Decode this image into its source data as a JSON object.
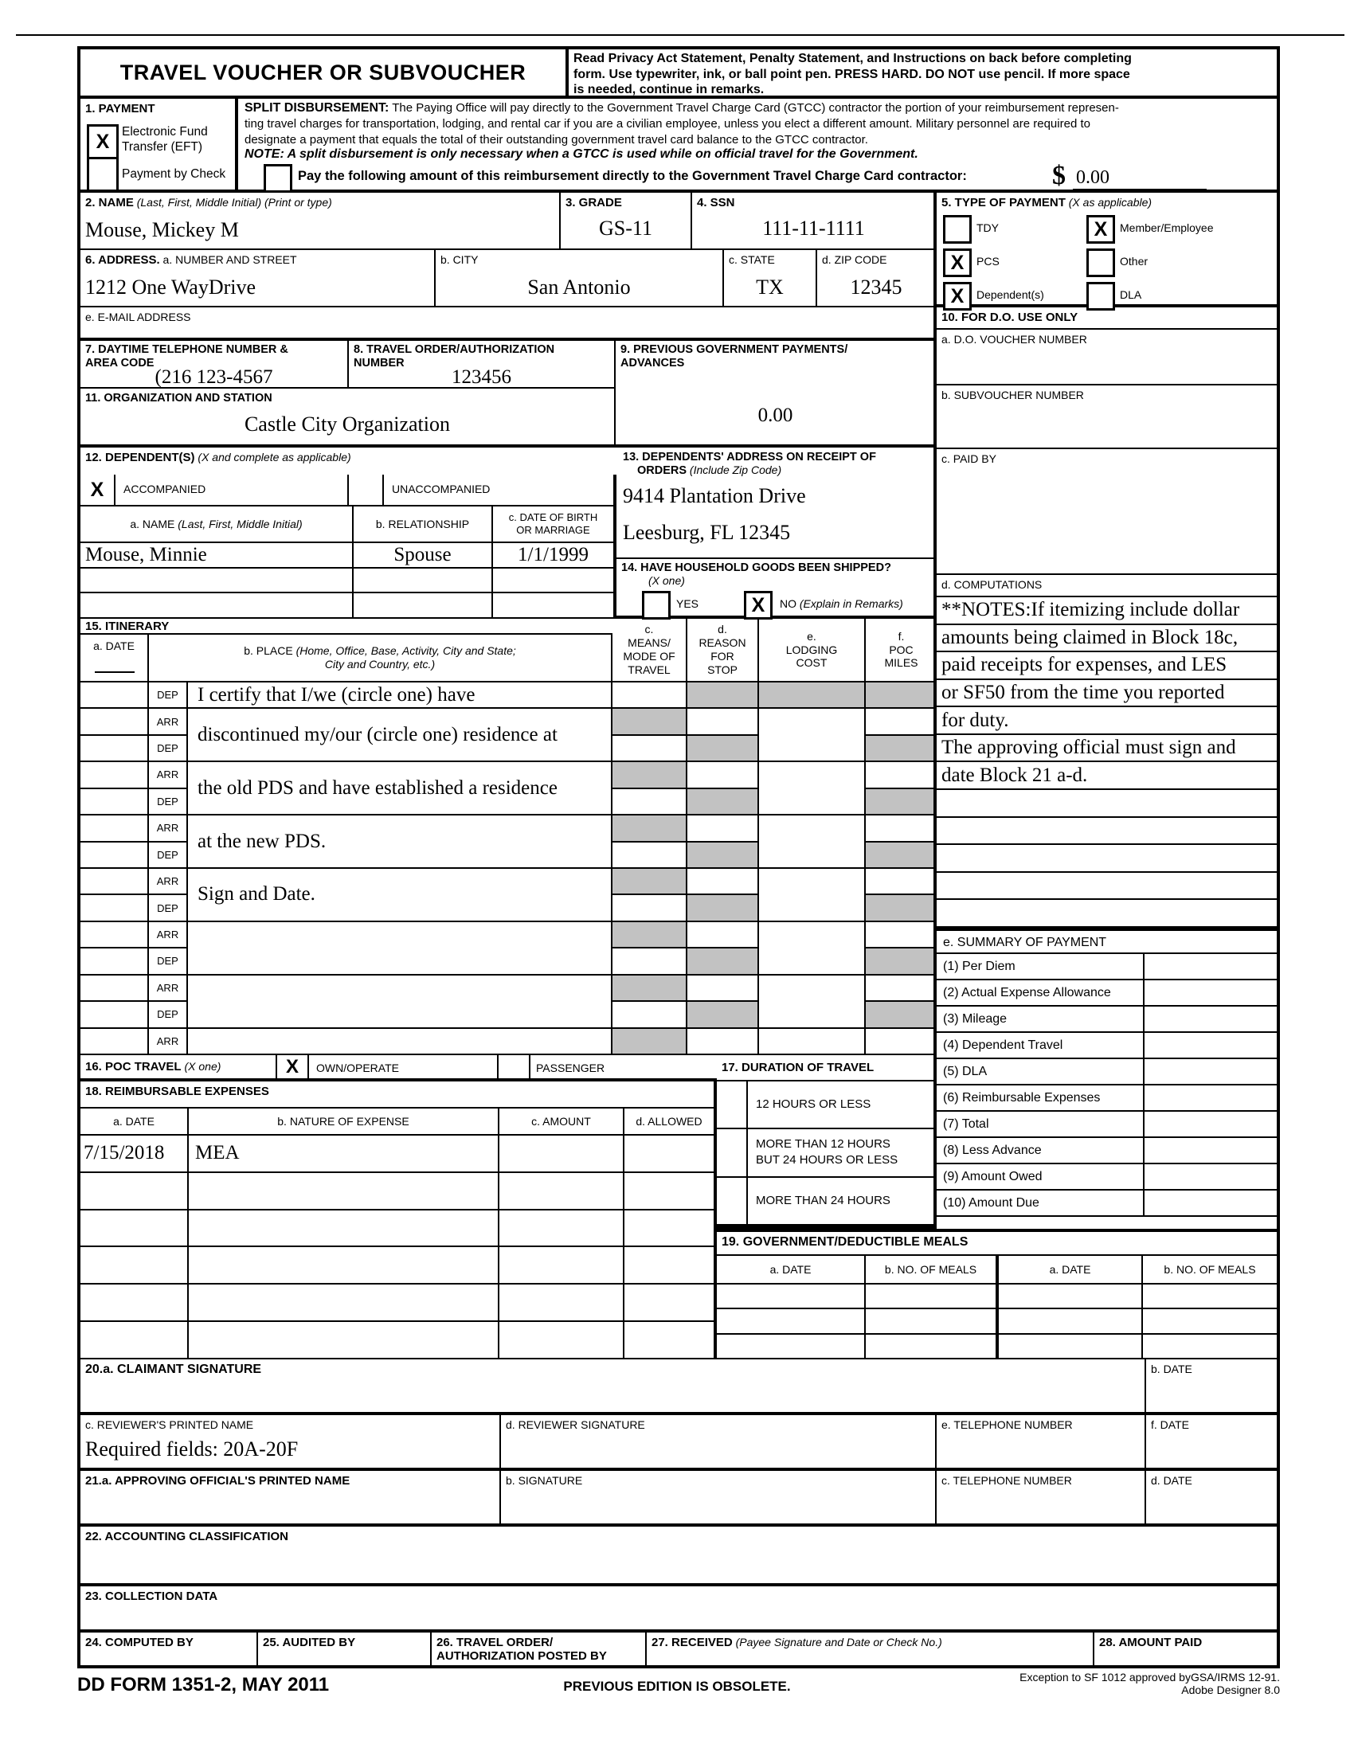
{
  "form_title": "TRAVEL VOUCHER OR SUBVOUCHER",
  "instructions": "Read Privacy Act Statement, Penalty Statement, and Instructions on back before  completing\nform.  Use typewriter, ink, or ball point pen.  PRESS HARD.  DO NOT use  pencil.  If more space\nis needed, continue in remarks.",
  "payment": {
    "label": "1. PAYMENT",
    "eft_label": "Electronic Fund\nTransfer (EFT)",
    "eft_mark": "X",
    "check_label": "Payment by Check",
    "check_mark": "",
    "split_lead": "SPLIT DISBURSEMENT:",
    "split_text": " The Paying Office will pay directly to the Government Travel Charge Card (GTCC) contractor the portion of your reimbursement represen-\nting travel charges for transportation, lodging, and rental car if you are a civilian employee, unless you elect a different amount.  Military personnel are required to\ndesignate a payment that equals the total of their outstanding government travel card balance to the GTCC contractor.",
    "note_line": "NOTE:  A split disbursement is only necessary when a GTCC is used while on official travel for the Government.",
    "pay_mark": "",
    "pay_line": "Pay the following amount of this reimbursement directly to the Government Travel Charge Card contractor:",
    "currency": "$",
    "amount": "0.00"
  },
  "block2": {
    "label_bold": "2. NAME",
    "label_italic": " (Last, First, Middle Initial) (Print or type)",
    "value": "Mouse, Mickey M"
  },
  "block3": {
    "label": "3. GRADE",
    "value": "GS-11"
  },
  "block4": {
    "label": "4. SSN",
    "value": "111-11-1111"
  },
  "block5": {
    "label_bold": "5. TYPE OF PAYMENT",
    "label_italic": " (X as applicable)",
    "options": [
      {
        "label": "TDY",
        "mark": ""
      },
      {
        "label": "Member/Employee",
        "mark": "X"
      },
      {
        "label": "PCS",
        "mark": "X"
      },
      {
        "label": "Other",
        "mark": ""
      },
      {
        "label": "Dependent(s)",
        "mark": "X"
      },
      {
        "label": "DLA",
        "mark": ""
      }
    ]
  },
  "block6": {
    "label_bold": "6. ADDRESS.",
    "label_rest": " a. NUMBER AND STREET",
    "street": "1212 One WayDrive",
    "city_label": "b. CITY",
    "city": "San Antonio",
    "state_label": "c. STATE",
    "state": "TX",
    "zip_label": "d. ZIP CODE",
    "zip": "12345",
    "email_label": "e. E-MAIL ADDRESS"
  },
  "block7": {
    "label": "7. DAYTIME TELEPHONE NUMBER &\nAREA CODE",
    "value": "(216 123-4567"
  },
  "block8": {
    "label": "8. TRAVEL ORDER/AUTHORIZATION\nNUMBER",
    "value": "123456"
  },
  "block9": {
    "label": "9.  PREVIOUS GOVERNMENT PAYMENTS/\nADVANCES",
    "value": "0.00"
  },
  "block10": {
    "label": "10.  FOR D.O. USE ONLY",
    "a_label": "a.  D.O. VOUCHER NUMBER",
    "b_label": "b.  SUBVOUCHER NUMBER",
    "c_label": "c.  PAID BY",
    "d_label": "d.  COMPUTATIONS"
  },
  "block11": {
    "label": "11. ORGANIZATION AND STATION",
    "value": "Castle City Organization"
  },
  "block12": {
    "label_bold": "12. DEPENDENT(S)",
    "label_italic": " (X and complete as applicable)",
    "acc_mark": "X",
    "acc_label": "ACCOMPANIED",
    "unacc_mark": "",
    "unacc_label": "UNACCOMPANIED",
    "name_header": "a. NAME",
    "name_header_italic": " (Last, First, Middle Initial)",
    "rel_header": "b. RELATIONSHIP",
    "dob_header": "c. DATE OF BIRTH\nOR MARRIAGE",
    "rows": [
      {
        "name": "Mouse, Minnie",
        "relationship": "Spouse",
        "dob": "1/1/1999"
      },
      {
        "name": "",
        "relationship": "",
        "dob": ""
      },
      {
        "name": "",
        "relationship": "",
        "dob": ""
      }
    ]
  },
  "block13": {
    "label_line1": "13. DEPENDENTS' ADDRESS ON RECEIPT OF",
    "label_line2_bold": "ORDERS",
    "label_line2_italic": " (Include Zip Code)",
    "value": "9414 Plantation Drive\nLeesburg, FL  12345"
  },
  "block14": {
    "label": "14. HAVE HOUSEHOLD GOODS BEEN SHIPPED?",
    "label_italic": "(X one)",
    "yes_mark": "",
    "yes_label": "YES",
    "no_mark": "X",
    "no_label": "NO",
    "no_label_italic": " (Explain in Remarks)"
  },
  "itinerary": {
    "label": "15. ITINERARY",
    "date_header": "a. DATE",
    "place_header_plain": "b. PLACE ",
    "place_header_italic": "(Home, Office, Base, Activity, City and State;\nCity and Country, etc.)",
    "means_header": "c.\nMEANS/\nMODE OF\nTRAVEL",
    "reason_header": "d.\nREASON\nFOR\nSTOP",
    "lodging_header": "e.\nLODGING\nCOST",
    "poc_header": "f.\nPOC\nMILES",
    "row_labels": [
      "DEP",
      "ARR",
      "DEP",
      "ARR",
      "DEP",
      "ARR",
      "DEP",
      "ARR",
      "DEP",
      "ARR",
      "DEP",
      "ARR",
      "DEP",
      "ARR"
    ],
    "place_cells": [
      {
        "span": 1,
        "text": "I certify that I/we (circle one) have"
      },
      {
        "span": 2,
        "text": "discontinued my/our (circle one) residence at"
      },
      {
        "span": 2,
        "text": "the old PDS and have established a residence"
      },
      {
        "span": 2,
        "text": "at the new PDS."
      },
      {
        "span": 2,
        "text": "Sign and Date."
      },
      {
        "span": 2,
        "text": ""
      },
      {
        "span": 2,
        "text": ""
      },
      {
        "span": 1,
        "text": ""
      }
    ],
    "lodging_cells": [
      {
        "span": 1,
        "gray": true
      },
      {
        "span": 2,
        "gray": false
      },
      {
        "span": 2,
        "gray": false
      },
      {
        "span": 2,
        "gray": false
      },
      {
        "span": 2,
        "gray": false
      },
      {
        "span": 2,
        "gray": false
      },
      {
        "span": 2,
        "gray": false
      },
      {
        "span": 1,
        "gray": false
      }
    ]
  },
  "block16": {
    "label_bold": "16. POC TRAVEL",
    "label_italic": " (X one)",
    "own_mark": "X",
    "own_label": "OWN/OPERATE",
    "pass_mark": "",
    "pass_label": "PASSENGER"
  },
  "block17": {
    "label": "17. DURATION OF TRAVEL",
    "options": [
      {
        "mark": "",
        "label": "12 HOURS OR LESS"
      },
      {
        "mark": "",
        "label": "MORE THAN 12 HOURS\nBUT 24 HOURS OR LESS"
      },
      {
        "mark": "",
        "label": "MORE THAN 24 HOURS"
      }
    ]
  },
  "block18": {
    "label": "18. REIMBURSABLE EXPENSES",
    "date_header": "a. DATE",
    "nature_header": "b. NATURE OF EXPENSE",
    "amount_header": "c. AMOUNT",
    "allowed_header": "d. ALLOWED",
    "rows": [
      {
        "date": "7/15/2018",
        "nature": "MEA",
        "amount": "",
        "allowed": ""
      },
      {
        "date": "",
        "nature": "",
        "amount": "",
        "allowed": ""
      },
      {
        "date": "",
        "nature": "",
        "amount": "",
        "allowed": ""
      },
      {
        "date": "",
        "nature": "",
        "amount": "",
        "allowed": ""
      },
      {
        "date": "",
        "nature": "",
        "amount": "",
        "allowed": ""
      },
      {
        "date": "",
        "nature": "",
        "amount": "",
        "allowed": ""
      }
    ]
  },
  "computations": {
    "lines": [
      "**NOTES:If itemizing include dollar",
      "amounts being claimed in Block 18c,",
      "paid receipts for expenses, and LES",
      "or SF50 from the time you reported",
      "for duty.",
      "The approving official must sign and",
      "date  Block 21 a-d.",
      "",
      "",
      "",
      "",
      ""
    ]
  },
  "summary": {
    "label": "e.  SUMMARY OF PAYMENT",
    "items": [
      "(1)  Per Diem",
      "(2)  Actual Expense Allowance",
      "(3)  Mileage",
      "(4)  Dependent Travel",
      "(5)  DLA",
      "(6)  Reimbursable Expenses",
      "(7)  Total",
      "(8)  Less Advance",
      "(9)  Amount Owed",
      "(10) Amount Due"
    ]
  },
  "block19": {
    "label": "19. GOVERNMENT/DEDUCTIBLE MEALS",
    "headers": [
      "a.  DATE",
      "b.  NO. OF MEALS",
      "a.  DATE",
      "b.  NO. OF MEALS"
    ]
  },
  "block20": {
    "a_label": "20.a.  CLAIMANT SIGNATURE",
    "b_label": "b.  DATE",
    "c_label": "c.  REVIEWER'S PRINTED NAME",
    "c_value": "Required fields: 20A-20F",
    "d_label": "d.  REVIEWER SIGNATURE",
    "e_label": "e.  TELEPHONE NUMBER",
    "f_label": "f.  DATE"
  },
  "block21": {
    "a_label": "21.a.  APPROVING OFFICIAL'S PRINTED NAME",
    "b_label": "b.  SIGNATURE",
    "c_label": "c.  TELEPHONE NUMBER",
    "d_label": "d.  DATE"
  },
  "block22": {
    "label": "22. ACCOUNTING CLASSIFICATION"
  },
  "block23": {
    "label": "23. COLLECTION DATA"
  },
  "block24": {
    "label": "24. COMPUTED BY"
  },
  "block25": {
    "label": "25. AUDITED BY"
  },
  "block26": {
    "label": "26. TRAVEL ORDER/\nAUTHORIZATION POSTED BY"
  },
  "block27": {
    "label_bold": "27. RECEIVED",
    "label_italic": " (Payee Signature and Date or Check No.)"
  },
  "block28": {
    "label": "28. AMOUNT PAID"
  },
  "footer": {
    "form_id": "DD FORM 1351-2, MAY 2011",
    "center": "PREVIOUS EDITION IS OBSOLETE.",
    "right_line1": "Exception to SF 1012 approved byGSA/IRMS 12-91.",
    "right_line2": "Adobe Designer 8.0"
  }
}
